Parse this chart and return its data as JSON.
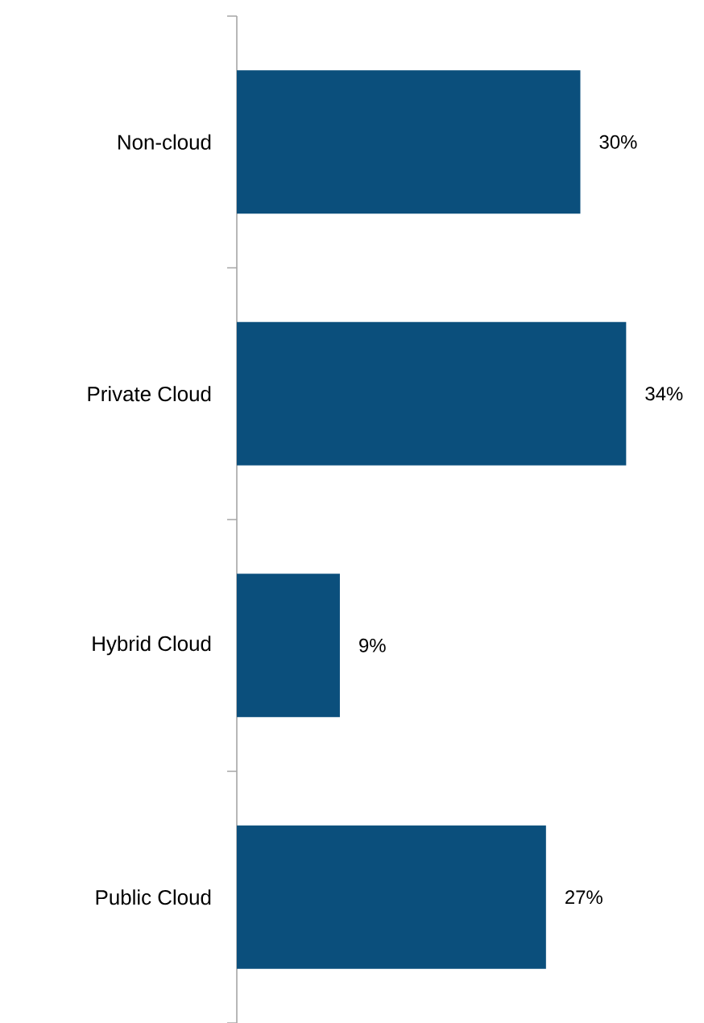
{
  "chart_data": {
    "type": "bar",
    "orientation": "horizontal",
    "categories": [
      "Non-cloud",
      "Private Cloud",
      "Hybrid Cloud",
      "Public Cloud"
    ],
    "values": [
      30,
      34,
      9,
      27
    ],
    "value_labels": [
      "30%",
      "34%",
      "9%",
      "27%"
    ],
    "color": "#0b4f7c"
  }
}
